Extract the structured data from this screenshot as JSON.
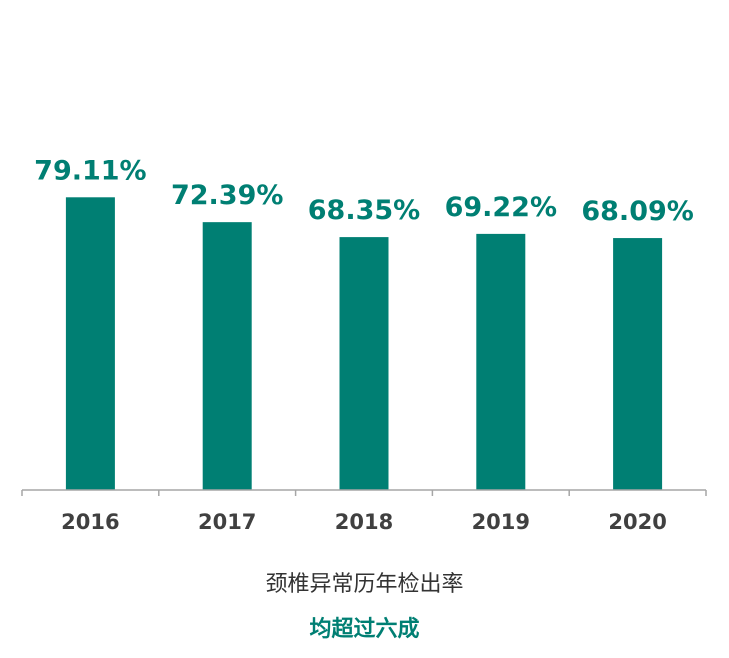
{
  "chart_data": {
    "type": "bar",
    "categories": [
      "2016",
      "2017",
      "2018",
      "2019",
      "2020"
    ],
    "values": [
      79.11,
      72.39,
      68.35,
      69.22,
      68.09
    ],
    "data_labels": [
      "79.11%",
      "72.39%",
      "68.35%",
      "69.22%",
      "68.09%"
    ],
    "title": "",
    "xlabel": "",
    "ylabel": "",
    "ylim": [
      0,
      100
    ],
    "grid": false,
    "legend": "none"
  },
  "captions": {
    "line1": "颈椎异常历年检出率",
    "line2": "均超过六成"
  },
  "colors": {
    "bar": "#007f73",
    "label": "#007f73",
    "axis": "#a6a6a6",
    "tick_label": "#404040",
    "caption": "#333333",
    "emphasis": "#007f73"
  }
}
